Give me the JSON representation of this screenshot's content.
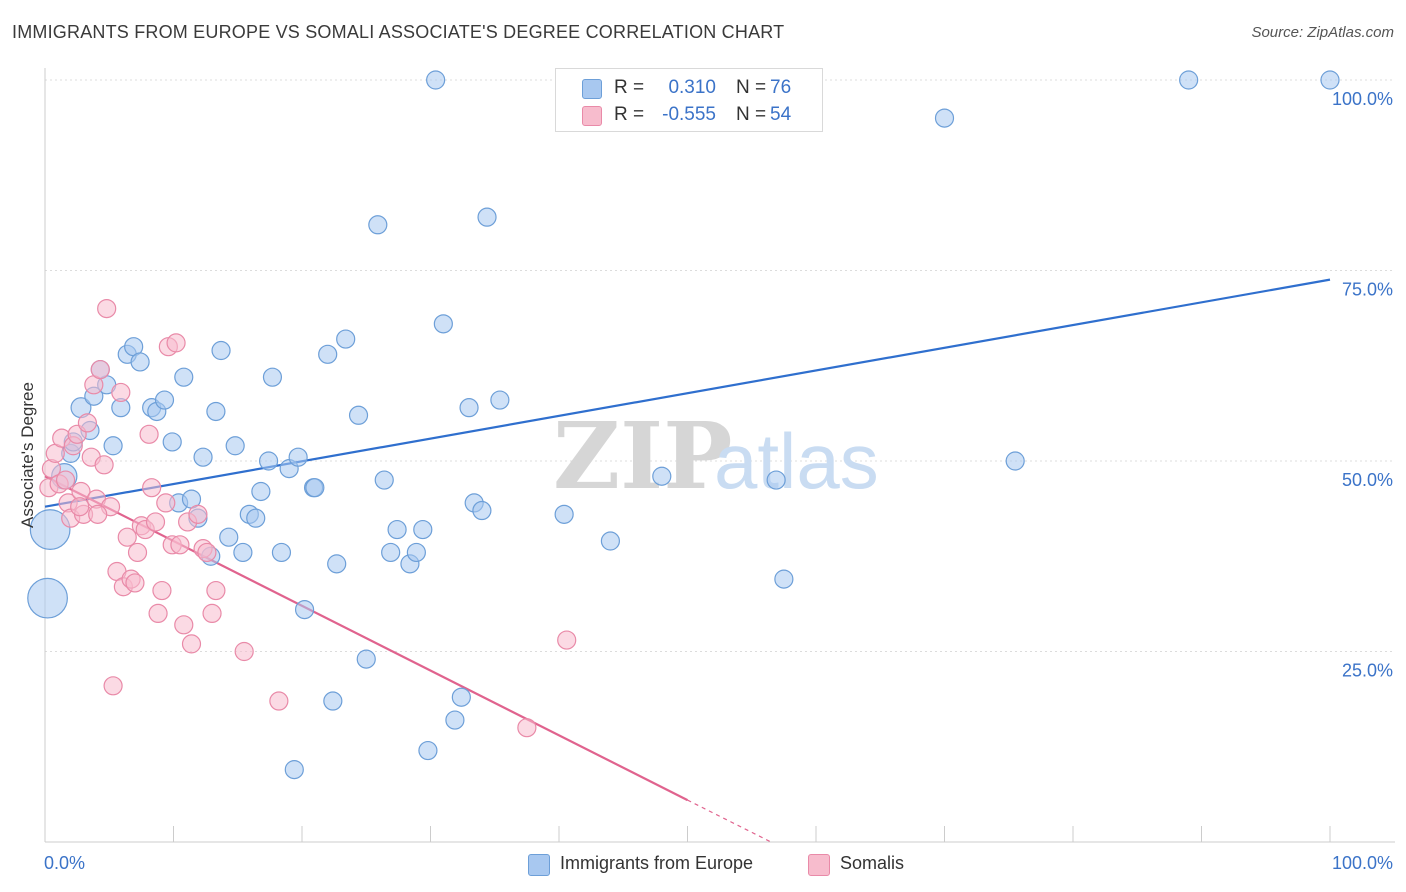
{
  "title": "IMMIGRANTS FROM EUROPE VS SOMALI ASSOCIATE'S DEGREE CORRELATION CHART",
  "source": "Source: ZipAtlas.com",
  "watermark": {
    "zip": "ZIP",
    "atlas": "atlas"
  },
  "legend_top": {
    "rows": [
      {
        "r_label": "R =",
        "r_value": "0.310",
        "n_label": "N =",
        "n_value": "76",
        "color": "#a8c8f0",
        "border": "#6d9fd8"
      },
      {
        "r_label": "R =",
        "r_value": "-0.555",
        "n_label": "N =",
        "n_value": "54",
        "color": "#f7bccd",
        "border": "#e98aa8"
      }
    ]
  },
  "legend_bottom": [
    {
      "label": "Immigrants from Europe",
      "color": "#a8c8f0",
      "border": "#6d9fd8"
    },
    {
      "label": "Somalis",
      "color": "#f7bccd",
      "border": "#e98aa8"
    }
  ],
  "chart_data": {
    "type": "scatter",
    "title": "IMMIGRANTS FROM EUROPE VS SOMALI ASSOCIATE'S DEGREE CORRELATION CHART",
    "xlabel": "",
    "ylabel": "Associate's Degree",
    "xlim": [
      0,
      100
    ],
    "ylim": [
      0,
      100
    ],
    "x_tick_labels": [
      {
        "value": 0,
        "label": "0.0%"
      },
      {
        "value": 100,
        "label": "100.0%"
      }
    ],
    "y_tick_labels": [
      {
        "value": 25,
        "label": "25.0%"
      },
      {
        "value": 50,
        "label": "50.0%"
      },
      {
        "value": 75,
        "label": "75.0%"
      },
      {
        "value": 100,
        "label": "100.0%"
      }
    ],
    "grid": true,
    "series": [
      {
        "name": "Immigrants from Europe",
        "color": "#a8c8f0",
        "stroke": "#6d9fd8",
        "line_color": "#2f6fce",
        "trend": {
          "x": [
            0,
            100
          ],
          "y": [
            44.0,
            73.8
          ]
        },
        "points": [
          [
            0.2,
            32.0,
            2.2
          ],
          [
            0.4,
            41.0,
            2.2
          ],
          [
            1.5,
            48.0,
            1.4
          ],
          [
            2.0,
            51.0,
            1.0
          ],
          [
            2.2,
            52.5,
            1.0
          ],
          [
            2.8,
            57.0,
            1.1
          ],
          [
            3.5,
            54.0,
            1.0
          ],
          [
            3.8,
            58.5,
            1.0
          ],
          [
            4.8,
            60.0,
            1.0
          ],
          [
            4.3,
            62.0,
            1.0
          ],
          [
            5.3,
            52.0,
            1.0
          ],
          [
            5.9,
            57.0,
            1.0
          ],
          [
            6.4,
            64.0,
            1.0
          ],
          [
            6.9,
            65.0,
            1.0
          ],
          [
            7.4,
            63.0,
            1.0
          ],
          [
            8.3,
            57.0,
            1.0
          ],
          [
            8.7,
            56.5,
            1.0
          ],
          [
            9.3,
            58.0,
            1.0
          ],
          [
            9.9,
            52.5,
            1.0
          ],
          [
            10.4,
            44.5,
            1.0
          ],
          [
            10.8,
            61.0,
            1.0
          ],
          [
            11.4,
            45.0,
            1.0
          ],
          [
            11.9,
            42.5,
            1.0
          ],
          [
            12.3,
            50.5,
            1.0
          ],
          [
            12.9,
            37.5,
            1.0
          ],
          [
            13.3,
            56.5,
            1.0
          ],
          [
            13.7,
            64.5,
            1.0
          ],
          [
            14.3,
            40.0,
            1.0
          ],
          [
            14.8,
            52.0,
            1.0
          ],
          [
            15.4,
            38.0,
            1.0
          ],
          [
            15.9,
            43.0,
            1.0
          ],
          [
            16.4,
            42.5,
            1.0
          ],
          [
            16.8,
            46.0,
            1.0
          ],
          [
            17.4,
            50.0,
            1.0
          ],
          [
            17.7,
            61.0,
            1.0
          ],
          [
            18.4,
            38.0,
            1.0
          ],
          [
            19.0,
            49.0,
            1.0
          ],
          [
            19.4,
            9.5,
            1.0
          ],
          [
            19.7,
            50.5,
            1.0
          ],
          [
            20.2,
            30.5,
            1.0
          ],
          [
            20.9,
            46.5,
            1.0
          ],
          [
            21.0,
            46.5,
            1.0
          ],
          [
            22.0,
            64.0,
            1.0
          ],
          [
            22.4,
            18.5,
            1.0
          ],
          [
            22.7,
            36.5,
            1.0
          ],
          [
            23.4,
            66.0,
            1.0
          ],
          [
            24.4,
            56.0,
            1.0
          ],
          [
            25.0,
            24.0,
            1.0
          ],
          [
            25.9,
            81.0,
            1.0
          ],
          [
            26.4,
            47.5,
            1.0
          ],
          [
            26.9,
            38.0,
            1.0
          ],
          [
            27.4,
            41.0,
            1.0
          ],
          [
            28.4,
            36.5,
            1.0
          ],
          [
            28.9,
            38.0,
            1.0
          ],
          [
            29.4,
            41.0,
            1.0
          ],
          [
            29.8,
            12.0,
            1.0
          ],
          [
            30.4,
            100.0,
            1.0
          ],
          [
            31.0,
            68.0,
            1.0
          ],
          [
            31.9,
            16.0,
            1.0
          ],
          [
            32.4,
            19.0,
            1.0
          ],
          [
            33.0,
            57.0,
            1.0
          ],
          [
            33.4,
            44.5,
            1.0
          ],
          [
            34.0,
            43.5,
            1.0
          ],
          [
            34.4,
            82.0,
            1.0
          ],
          [
            35.4,
            58.0,
            1.0
          ],
          [
            40.4,
            43.0,
            1.0
          ],
          [
            44.0,
            39.5,
            1.0
          ],
          [
            48.0,
            48.0,
            1.0
          ],
          [
            52.0,
            100.0,
            1.0
          ],
          [
            56.9,
            47.5,
            1.0
          ],
          [
            57.5,
            34.5,
            1.0
          ],
          [
            70.0,
            95.0,
            1.0
          ],
          [
            75.5,
            50.0,
            1.0
          ],
          [
            89.0,
            100.0,
            1.0
          ],
          [
            100.0,
            100.0,
            1.0
          ]
        ]
      },
      {
        "name": "Somalis",
        "color": "#f7bccd",
        "stroke": "#e98aa8",
        "line_color": "#e0638e",
        "trend": {
          "x": [
            0,
            50
          ],
          "y": [
            48.0,
            5.5
          ]
        },
        "trend_dashed": {
          "x": [
            50,
            56.5
          ],
          "y": [
            5.5,
            0
          ]
        },
        "points": [
          [
            0.3,
            46.5,
            1.0
          ],
          [
            0.5,
            49.0,
            1.0
          ],
          [
            0.8,
            51.0,
            1.0
          ],
          [
            1.1,
            47.0,
            1.0
          ],
          [
            1.3,
            53.0,
            1.0
          ],
          [
            1.6,
            47.5,
            1.0
          ],
          [
            1.8,
            44.5,
            1.0
          ],
          [
            2.0,
            42.5,
            1.0
          ],
          [
            2.2,
            52.0,
            1.0
          ],
          [
            2.5,
            53.5,
            1.0
          ],
          [
            2.8,
            46.0,
            1.0
          ],
          [
            3.0,
            43.0,
            1.0
          ],
          [
            3.3,
            55.0,
            1.0
          ],
          [
            3.6,
            50.5,
            1.0
          ],
          [
            3.8,
            60.0,
            1.0
          ],
          [
            4.0,
            45.0,
            1.0
          ],
          [
            4.3,
            62.0,
            1.0
          ],
          [
            4.6,
            49.5,
            1.0
          ],
          [
            4.8,
            70.0,
            1.0
          ],
          [
            5.1,
            44.0,
            1.0
          ],
          [
            5.3,
            20.5,
            1.0
          ],
          [
            5.6,
            35.5,
            1.0
          ],
          [
            5.9,
            59.0,
            1.0
          ],
          [
            6.1,
            33.5,
            1.0
          ],
          [
            6.4,
            40.0,
            1.0
          ],
          [
            6.7,
            34.5,
            1.0
          ],
          [
            7.0,
            34.0,
            1.0
          ],
          [
            7.2,
            38.0,
            1.0
          ],
          [
            7.5,
            41.5,
            1.0
          ],
          [
            7.8,
            41.0,
            1.0
          ],
          [
            8.1,
            53.5,
            1.0
          ],
          [
            8.3,
            46.5,
            1.0
          ],
          [
            8.6,
            42.0,
            1.0
          ],
          [
            8.8,
            30.0,
            1.0
          ],
          [
            9.1,
            33.0,
            1.0
          ],
          [
            9.4,
            44.5,
            1.0
          ],
          [
            9.6,
            65.0,
            1.0
          ],
          [
            9.9,
            39.0,
            1.0
          ],
          [
            10.2,
            65.5,
            1.0
          ],
          [
            10.5,
            39.0,
            1.0
          ],
          [
            10.8,
            28.5,
            1.0
          ],
          [
            11.1,
            42.0,
            1.0
          ],
          [
            11.4,
            26.0,
            1.0
          ],
          [
            11.9,
            43.0,
            1.0
          ],
          [
            12.3,
            38.5,
            1.0
          ],
          [
            12.6,
            38.0,
            1.0
          ],
          [
            13.0,
            30.0,
            1.0
          ],
          [
            13.3,
            33.0,
            1.0
          ],
          [
            15.5,
            25.0,
            1.0
          ],
          [
            18.2,
            18.5,
            1.0
          ],
          [
            37.5,
            15.0,
            1.0
          ],
          [
            40.6,
            26.5,
            1.0
          ],
          [
            4.1,
            43.0,
            1.0
          ],
          [
            2.7,
            44.0,
            1.0
          ]
        ]
      }
    ]
  }
}
